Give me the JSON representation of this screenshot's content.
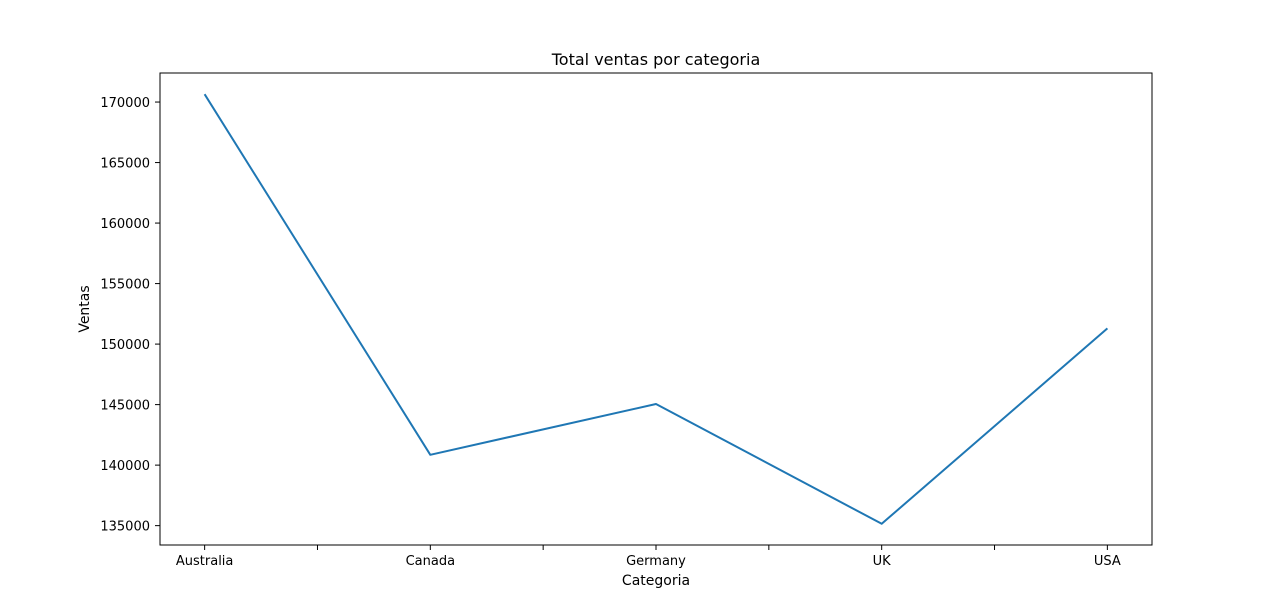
{
  "chart_data": {
    "type": "line",
    "title": "Total ventas por categoria",
    "xlabel": "Categoria",
    "ylabel": "Ventas",
    "categories": [
      "Australia",
      "Canada",
      "Germany",
      "UK",
      "USA"
    ],
    "series": [
      {
        "values": [
          170650,
          140850,
          145050,
          135150,
          151300
        ]
      }
    ],
    "ylim": [
      133400,
      172400
    ],
    "yticks": [
      135000,
      140000,
      145000,
      150000,
      155000,
      160000,
      165000,
      170000
    ],
    "ytick_labels": [
      "135000",
      "140000",
      "145000",
      "150000",
      "155000",
      "160000",
      "165000",
      "170000"
    ],
    "grid": false,
    "legend": false,
    "colors": {
      "line": "#1f77b4",
      "axes": "#000000"
    }
  }
}
